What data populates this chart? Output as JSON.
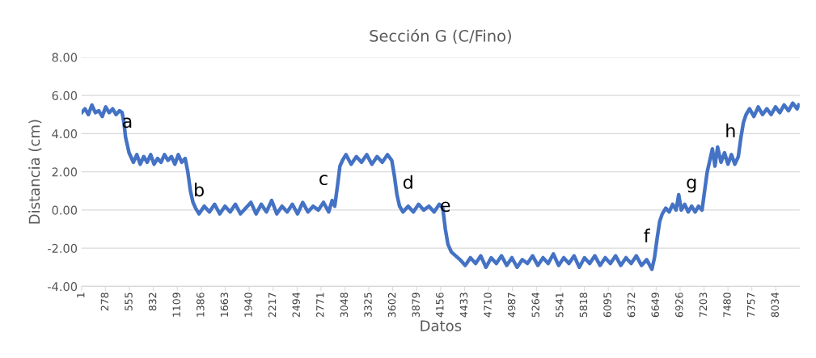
{
  "chart_data": {
    "type": "line",
    "title": "Sección G (C/Fino)",
    "xlabel": "Datos",
    "ylabel": "Distancia (cm)",
    "x": [
      1,
      40,
      80,
      120,
      160,
      200,
      240,
      280,
      320,
      360,
      400,
      440,
      470,
      490,
      510,
      530,
      550,
      570,
      600,
      640,
      680,
      720,
      760,
      800,
      840,
      880,
      920,
      960,
      1000,
      1040,
      1080,
      1120,
      1160,
      1200,
      1230,
      1260,
      1290,
      1320,
      1360,
      1420,
      1480,
      1540,
      1600,
      1660,
      1720,
      1780,
      1840,
      1900,
      1960,
      2020,
      2080,
      2140,
      2200,
      2260,
      2320,
      2380,
      2440,
      2500,
      2560,
      2620,
      2680,
      2740,
      2800,
      2860,
      2900,
      2930,
      2960,
      2990,
      3020,
      3060,
      3120,
      3180,
      3240,
      3300,
      3360,
      3420,
      3480,
      3540,
      3590,
      3620,
      3650,
      3680,
      3720,
      3780,
      3840,
      3900,
      3960,
      4020,
      4080,
      4140,
      4180,
      4210,
      4240,
      4280,
      4330,
      4380,
      4440,
      4500,
      4560,
      4620,
      4680,
      4740,
      4800,
      4860,
      4920,
      4980,
      5040,
      5100,
      5160,
      5220,
      5280,
      5340,
      5400,
      5460,
      5520,
      5580,
      5640,
      5700,
      5760,
      5820,
      5880,
      5940,
      6000,
      6060,
      6120,
      6180,
      6240,
      6300,
      6360,
      6420,
      6480,
      6540,
      6600,
      6630,
      6660,
      6690,
      6720,
      6760,
      6800,
      6840,
      6880,
      6910,
      6940,
      6980,
      7020,
      7060,
      7100,
      7140,
      7180,
      7210,
      7240,
      7270,
      7300,
      7330,
      7360,
      7400,
      7440,
      7480,
      7520,
      7560,
      7600,
      7630,
      7660,
      7690,
      7730,
      7780,
      7830,
      7880,
      7930,
      7980,
      8030,
      8080,
      8130,
      8180,
      8230,
      8280,
      8300
    ],
    "series": [
      {
        "color": "#4472c4",
        "values": [
          5.1,
          5.3,
          5.0,
          5.5,
          5.1,
          5.2,
          4.9,
          5.4,
          5.1,
          5.3,
          5.0,
          5.2,
          5.1,
          4.6,
          3.8,
          3.4,
          3.0,
          2.8,
          2.5,
          2.9,
          2.4,
          2.8,
          2.5,
          2.9,
          2.4,
          2.7,
          2.5,
          2.9,
          2.6,
          2.8,
          2.4,
          2.9,
          2.5,
          2.7,
          2.0,
          1.0,
          0.4,
          0.1,
          -0.2,
          0.2,
          -0.1,
          0.3,
          -0.2,
          0.2,
          -0.1,
          0.3,
          -0.2,
          0.1,
          0.4,
          -0.2,
          0.3,
          -0.1,
          0.5,
          -0.2,
          0.2,
          -0.1,
          0.3,
          -0.2,
          0.4,
          -0.1,
          0.2,
          0.0,
          0.4,
          -0.1,
          0.5,
          0.2,
          1.2,
          2.3,
          2.6,
          2.9,
          2.4,
          2.8,
          2.5,
          2.9,
          2.4,
          2.8,
          2.5,
          2.9,
          2.6,
          1.8,
          0.8,
          0.2,
          -0.1,
          0.2,
          -0.1,
          0.3,
          0.0,
          0.2,
          -0.1,
          0.3,
          0.1,
          -1.0,
          -1.8,
          -2.2,
          -2.4,
          -2.6,
          -2.9,
          -2.5,
          -2.8,
          -2.4,
          -3.0,
          -2.5,
          -2.8,
          -2.4,
          -2.9,
          -2.5,
          -3.0,
          -2.6,
          -2.8,
          -2.4,
          -2.9,
          -2.5,
          -2.8,
          -2.3,
          -2.9,
          -2.5,
          -2.8,
          -2.4,
          -3.0,
          -2.5,
          -2.8,
          -2.4,
          -2.9,
          -2.5,
          -2.8,
          -2.4,
          -2.9,
          -2.5,
          -2.8,
          -2.4,
          -2.9,
          -2.6,
          -3.1,
          -2.5,
          -1.5,
          -0.6,
          -0.2,
          0.1,
          -0.1,
          0.3,
          0.0,
          0.8,
          0.0,
          0.3,
          -0.1,
          0.2,
          -0.1,
          0.2,
          0.0,
          1.0,
          2.0,
          2.6,
          3.2,
          2.3,
          3.3,
          2.5,
          3.0,
          2.4,
          2.9,
          2.4,
          2.8,
          3.8,
          4.6,
          5.0,
          5.3,
          4.9,
          5.4,
          5.0,
          5.3,
          5.0,
          5.4,
          5.1,
          5.5,
          5.2,
          5.6,
          5.3,
          5.5
        ]
      }
    ],
    "xlim": [
      1,
      8310
    ],
    "xticks": [
      1,
      278,
      555,
      832,
      1109,
      1386,
      1663,
      1940,
      2217,
      2494,
      2771,
      3048,
      3325,
      3602,
      3879,
      4156,
      4433,
      4710,
      4987,
      5264,
      5541,
      5818,
      6095,
      6372,
      6649,
      6926,
      7203,
      7480,
      7757,
      8034
    ],
    "ylim": [
      -4,
      8
    ],
    "yticks": [
      {
        "value": -4,
        "label": "-4.00"
      },
      {
        "value": -2,
        "label": "-2.00"
      },
      {
        "value": 0,
        "label": "0.00"
      },
      {
        "value": 2,
        "label": "2.00"
      },
      {
        "value": 4,
        "label": "4.00"
      },
      {
        "value": 6,
        "label": "6.00"
      },
      {
        "value": 8,
        "label": "8.00"
      }
    ],
    "grid": "y",
    "legend": false,
    "annotations": [
      {
        "text": "a",
        "x": 530,
        "y": 3.4
      },
      {
        "text": "b",
        "x": 1360,
        "y": -0.2
      },
      {
        "text": "c",
        "x": 2800,
        "y": 0.4
      },
      {
        "text": "d",
        "x": 3780,
        "y": 0.2
      },
      {
        "text": "e",
        "x": 4210,
        "y": -1.0
      },
      {
        "text": "f",
        "x": 6540,
        "y": -2.6
      },
      {
        "text": "g",
        "x": 7060,
        "y": 0.2
      },
      {
        "text": "h",
        "x": 7510,
        "y": 2.9
      }
    ]
  }
}
